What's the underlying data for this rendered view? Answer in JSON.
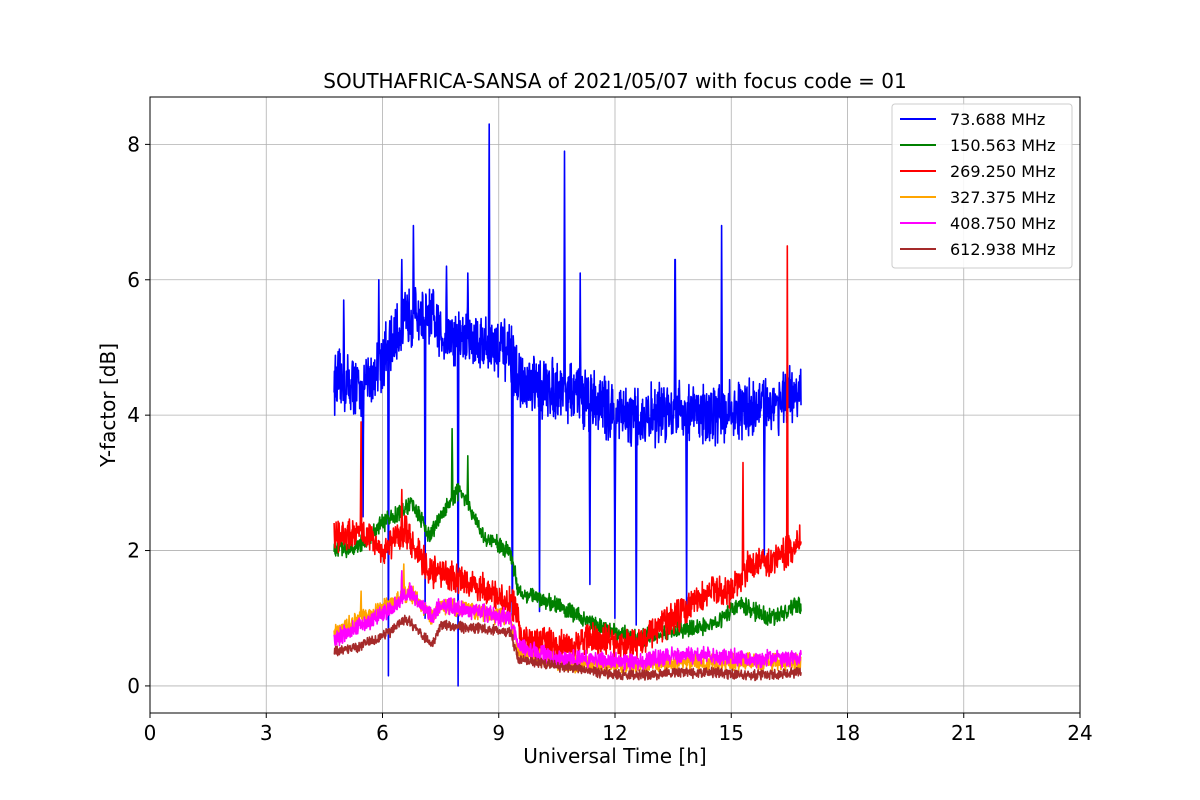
{
  "chart_data": {
    "type": "line",
    "title": "SOUTHAFRICA-SANSA of 2021/05/07 with focus code = 01",
    "xlabel": "Universal Time [h]",
    "ylabel": "Y-factor [dB]",
    "xlim": [
      0,
      24
    ],
    "ylim": [
      -0.4,
      8.7
    ],
    "xticks": [
      0,
      3,
      6,
      9,
      12,
      15,
      18,
      21,
      24
    ],
    "yticks": [
      0,
      2,
      4,
      6,
      8
    ],
    "grid": true,
    "legend_position": "top-right",
    "time_range": [
      4.75,
      16.8
    ],
    "series": [
      {
        "name": " 73.688 MHz",
        "color": "#0000ff",
        "noise": 0.35,
        "keypoints": [
          [
            4.75,
            4.5
          ],
          [
            5.5,
            4.4
          ],
          [
            6.2,
            5.0
          ],
          [
            6.7,
            5.5
          ],
          [
            7.3,
            5.4
          ],
          [
            7.5,
            5.2
          ],
          [
            8.5,
            5.1
          ],
          [
            9.3,
            4.9
          ],
          [
            9.6,
            4.4
          ],
          [
            10.5,
            4.4
          ],
          [
            11.5,
            4.2
          ],
          [
            12.5,
            3.9
          ],
          [
            13.5,
            4.1
          ],
          [
            14.5,
            4.0
          ],
          [
            15.5,
            4.1
          ],
          [
            16.8,
            4.3
          ]
        ],
        "spikes": [
          [
            5.0,
            5.7
          ],
          [
            5.5,
            2.5
          ],
          [
            5.9,
            6.0
          ],
          [
            6.15,
            0.15
          ],
          [
            6.5,
            6.3
          ],
          [
            6.8,
            6.8
          ],
          [
            7.1,
            1.0
          ],
          [
            7.65,
            6.2
          ],
          [
            7.95,
            0.0
          ],
          [
            8.2,
            6.1
          ],
          [
            8.75,
            8.3
          ],
          [
            9.35,
            1.0
          ],
          [
            10.05,
            1.1
          ],
          [
            10.7,
            7.9
          ],
          [
            11.1,
            6.1
          ],
          [
            11.35,
            1.5
          ],
          [
            12.0,
            1.0
          ],
          [
            12.55,
            0.9
          ],
          [
            13.55,
            6.3
          ],
          [
            13.85,
            1.2
          ],
          [
            14.75,
            6.8
          ],
          [
            15.85,
            1.8
          ]
        ]
      },
      {
        "name": "150.563 MHz",
        "color": "#008000",
        "noise": 0.1,
        "keypoints": [
          [
            4.75,
            2.0
          ],
          [
            5.5,
            2.1
          ],
          [
            6.0,
            2.4
          ],
          [
            6.8,
            2.7
          ],
          [
            7.2,
            2.2
          ],
          [
            7.6,
            2.6
          ],
          [
            8.0,
            2.9
          ],
          [
            8.6,
            2.2
          ],
          [
            9.3,
            2.0
          ],
          [
            9.5,
            1.4
          ],
          [
            10.5,
            1.2
          ],
          [
            11.5,
            0.9
          ],
          [
            12.5,
            0.7
          ],
          [
            13.5,
            0.8
          ],
          [
            14.5,
            0.9
          ],
          [
            15.2,
            1.2
          ],
          [
            16.0,
            1.0
          ],
          [
            16.8,
            1.2
          ]
        ],
        "spikes": [
          [
            7.8,
            3.8
          ],
          [
            8.2,
            3.4
          ]
        ]
      },
      {
        "name": "269.250 MHz",
        "color": "#ff0000",
        "noise": 0.18,
        "keypoints": [
          [
            4.75,
            2.2
          ],
          [
            5.5,
            2.3
          ],
          [
            6.0,
            2.0
          ],
          [
            6.6,
            2.3
          ],
          [
            7.2,
            1.7
          ],
          [
            8.0,
            1.6
          ],
          [
            9.0,
            1.3
          ],
          [
            9.4,
            1.2
          ],
          [
            9.6,
            0.7
          ],
          [
            10.5,
            0.6
          ],
          [
            11.5,
            0.7
          ],
          [
            12.5,
            0.6
          ],
          [
            13.5,
            1.0
          ],
          [
            14.5,
            1.4
          ],
          [
            15.0,
            1.4
          ],
          [
            15.5,
            1.8
          ],
          [
            16.3,
            1.9
          ],
          [
            16.8,
            2.2
          ]
        ],
        "spikes": [
          [
            5.45,
            3.9
          ],
          [
            6.5,
            2.9
          ],
          [
            15.3,
            3.3
          ],
          [
            16.45,
            6.5
          ]
        ]
      },
      {
        "name": "327.375 MHz",
        "color": "#ffa500",
        "noise": 0.1,
        "keypoints": [
          [
            4.75,
            0.8
          ],
          [
            5.5,
            1.0
          ],
          [
            6.2,
            1.2
          ],
          [
            6.7,
            1.4
          ],
          [
            7.3,
            1.0
          ],
          [
            7.5,
            1.2
          ],
          [
            9.3,
            1.0
          ],
          [
            9.5,
            0.5
          ],
          [
            10.5,
            0.35
          ],
          [
            11.5,
            0.3
          ],
          [
            12.5,
            0.3
          ],
          [
            13.5,
            0.35
          ],
          [
            14.5,
            0.35
          ],
          [
            15.5,
            0.35
          ],
          [
            16.8,
            0.35
          ]
        ],
        "spikes": [
          [
            5.45,
            1.4
          ],
          [
            6.55,
            1.8
          ]
        ]
      },
      {
        "name": "408.750 MHz",
        "color": "#ff00ff",
        "noise": 0.1,
        "keypoints": [
          [
            4.75,
            0.7
          ],
          [
            5.5,
            0.9
          ],
          [
            6.2,
            1.1
          ],
          [
            6.7,
            1.4
          ],
          [
            7.3,
            1.0
          ],
          [
            7.5,
            1.2
          ],
          [
            9.3,
            1.0
          ],
          [
            9.5,
            0.6
          ],
          [
            10.5,
            0.4
          ],
          [
            11.5,
            0.4
          ],
          [
            12.5,
            0.35
          ],
          [
            13.5,
            0.45
          ],
          [
            14.5,
            0.45
          ],
          [
            15.5,
            0.4
          ],
          [
            16.8,
            0.4
          ]
        ],
        "spikes": [
          [
            6.5,
            1.7
          ]
        ]
      },
      {
        "name": "612.938 MHz",
        "color": "#a52a2a",
        "noise": 0.06,
        "keypoints": [
          [
            4.75,
            0.5
          ],
          [
            5.5,
            0.6
          ],
          [
            6.2,
            0.8
          ],
          [
            6.6,
            1.0
          ],
          [
            7.3,
            0.6
          ],
          [
            7.5,
            0.9
          ],
          [
            9.3,
            0.8
          ],
          [
            9.5,
            0.4
          ],
          [
            10.5,
            0.3
          ],
          [
            11.5,
            0.2
          ],
          [
            12.5,
            0.15
          ],
          [
            13.5,
            0.2
          ],
          [
            14.5,
            0.2
          ],
          [
            15.5,
            0.15
          ],
          [
            16.8,
            0.2
          ]
        ],
        "spikes": []
      }
    ]
  }
}
